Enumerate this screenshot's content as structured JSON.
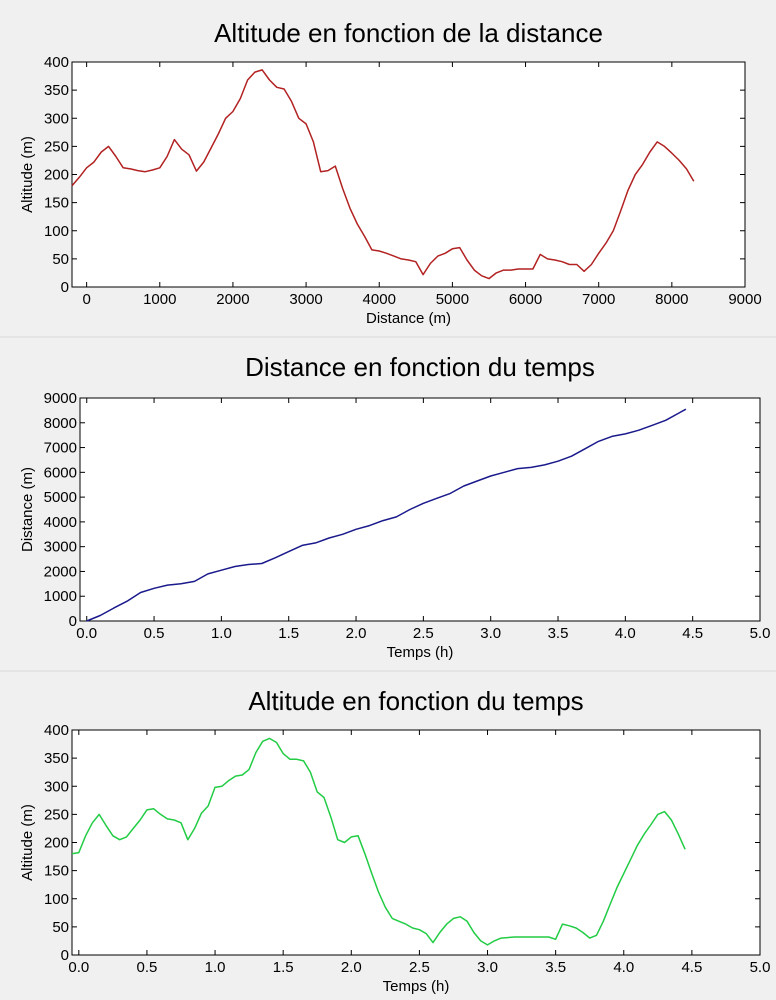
{
  "chart_data": [
    {
      "type": "line",
      "title": "Altitude en fonction de la distance",
      "xlabel": "Distance (m)",
      "ylabel": "Altitude (m)",
      "xlim": [
        -200,
        9000
      ],
      "ylim": [
        0,
        400
      ],
      "xticks": [
        0,
        1000,
        2000,
        3000,
        4000,
        5000,
        6000,
        7000,
        8000,
        9000
      ],
      "xtick_labels": [
        "0",
        "1000",
        "2000",
        "3000",
        "4000",
        "5000",
        "6000",
        "7000",
        "8000",
        "9000"
      ],
      "yticks": [
        0,
        50,
        100,
        150,
        200,
        250,
        300,
        350,
        400
      ],
      "ytick_labels": [
        "0",
        "50",
        "100",
        "150",
        "200",
        "250",
        "300",
        "350",
        "400"
      ],
      "grid": false,
      "color": "#b22222",
      "series": [
        {
          "x": [
            -200,
            -100,
            0,
            100,
            200,
            300,
            400,
            500,
            600,
            700,
            800,
            900,
            1000,
            1100,
            1200,
            1300,
            1400,
            1500,
            1600,
            1700,
            1800,
            1900,
            2000,
            2100,
            2200,
            2300,
            2400,
            2500,
            2600,
            2700,
            2800,
            2900,
            3000,
            3100,
            3200,
            3300,
            3400,
            3500,
            3600,
            3700,
            3800,
            3900,
            4000,
            4100,
            4200,
            4300,
            4400,
            4500,
            4600,
            4700,
            4800,
            4900,
            5000,
            5100,
            5200,
            5300,
            5400,
            5500,
            5600,
            5700,
            5800,
            5900,
            6000,
            6100,
            6200,
            6300,
            6400,
            6500,
            6600,
            6700,
            6800,
            6900,
            7000,
            7100,
            7200,
            7300,
            7400,
            7500,
            7600,
            7700,
            7800,
            7900,
            8000,
            8100,
            8200,
            8300
          ],
          "y": [
            180,
            195,
            212,
            222,
            240,
            250,
            232,
            212,
            210,
            207,
            205,
            208,
            212,
            232,
            262,
            245,
            235,
            206,
            222,
            247,
            272,
            300,
            312,
            335,
            368,
            382,
            386,
            368,
            355,
            352,
            330,
            300,
            290,
            258,
            205,
            207,
            215,
            175,
            140,
            112,
            90,
            66,
            64,
            60,
            55,
            50,
            48,
            45,
            22,
            42,
            55,
            60,
            68,
            70,
            48,
            30,
            20,
            15,
            25,
            30,
            30,
            32,
            32,
            32,
            58,
            50,
            48,
            45,
            40,
            40,
            28,
            40,
            60,
            78,
            100,
            135,
            172,
            200,
            218,
            240,
            258,
            250,
            238,
            225,
            210,
            188
          ]
        }
      ]
    },
    {
      "type": "line",
      "title": "Distance en fonction du temps",
      "xlabel": "Temps (h)",
      "ylabel": "Distance (m)",
      "xlim": [
        -0.05,
        5.0
      ],
      "ylim": [
        0,
        9000
      ],
      "xticks": [
        0.0,
        0.5,
        1.0,
        1.5,
        2.0,
        2.5,
        3.0,
        3.5,
        4.0,
        4.5,
        5.0
      ],
      "xtick_labels": [
        "0.0",
        "0.5",
        "1.0",
        "1.5",
        "2.0",
        "2.5",
        "3.0",
        "3.5",
        "4.0",
        "4.5",
        "5.0"
      ],
      "yticks": [
        0,
        1000,
        2000,
        3000,
        4000,
        5000,
        6000,
        7000,
        8000,
        9000
      ],
      "ytick_labels": [
        "0",
        "1000",
        "2000",
        "3000",
        "4000",
        "5000",
        "6000",
        "7000",
        "8000",
        "9000"
      ],
      "grid": false,
      "color": "#1a1a8c",
      "series": [
        {
          "x": [
            0.0,
            0.1,
            0.2,
            0.3,
            0.4,
            0.5,
            0.6,
            0.7,
            0.8,
            0.9,
            1.0,
            1.1,
            1.2,
            1.3,
            1.4,
            1.5,
            1.6,
            1.7,
            1.8,
            1.9,
            2.0,
            2.1,
            2.2,
            2.3,
            2.4,
            2.5,
            2.6,
            2.7,
            2.8,
            2.9,
            3.0,
            3.1,
            3.2,
            3.3,
            3.4,
            3.5,
            3.6,
            3.7,
            3.8,
            3.9,
            4.0,
            4.1,
            4.2,
            4.3,
            4.4,
            4.45
          ],
          "y": [
            0,
            220,
            520,
            800,
            1150,
            1320,
            1450,
            1500,
            1600,
            1900,
            2050,
            2200,
            2280,
            2320,
            2550,
            2800,
            3050,
            3150,
            3350,
            3500,
            3700,
            3850,
            4050,
            4200,
            4500,
            4750,
            4950,
            5150,
            5450,
            5650,
            5850,
            6000,
            6150,
            6200,
            6300,
            6450,
            6650,
            6950,
            7250,
            7450,
            7550,
            7700,
            7900,
            8100,
            8400,
            8550
          ]
        }
      ]
    },
    {
      "type": "line",
      "title": "Altitude en fonction du temps",
      "xlabel": "Temps (h)",
      "ylabel": "Altitude (m)",
      "xlim": [
        -0.05,
        5.0
      ],
      "ylim": [
        0,
        400
      ],
      "xticks": [
        0.0,
        0.5,
        1.0,
        1.5,
        2.0,
        2.5,
        3.0,
        3.5,
        4.0,
        4.5,
        5.0
      ],
      "xtick_labels": [
        "0.0",
        "0.5",
        "1.0",
        "1.5",
        "2.0",
        "2.5",
        "3.0",
        "3.5",
        "4.0",
        "4.5",
        "5.0"
      ],
      "yticks": [
        0,
        50,
        100,
        150,
        200,
        250,
        300,
        350,
        400
      ],
      "ytick_labels": [
        "0",
        "50",
        "100",
        "150",
        "200",
        "250",
        "300",
        "350",
        "400"
      ],
      "grid": false,
      "color": "#22cc44",
      "series": [
        {
          "x": [
            -0.05,
            0.0,
            0.05,
            0.1,
            0.15,
            0.2,
            0.25,
            0.3,
            0.35,
            0.4,
            0.45,
            0.5,
            0.55,
            0.6,
            0.65,
            0.7,
            0.75,
            0.8,
            0.85,
            0.9,
            0.95,
            1.0,
            1.05,
            1.1,
            1.15,
            1.2,
            1.25,
            1.3,
            1.35,
            1.4,
            1.45,
            1.5,
            1.55,
            1.6,
            1.65,
            1.7,
            1.75,
            1.8,
            1.85,
            1.9,
            1.95,
            2.0,
            2.05,
            2.1,
            2.15,
            2.2,
            2.25,
            2.3,
            2.35,
            2.4,
            2.45,
            2.5,
            2.55,
            2.6,
            2.65,
            2.7,
            2.75,
            2.8,
            2.85,
            2.9,
            2.95,
            3.0,
            3.05,
            3.1,
            3.2,
            3.3,
            3.4,
            3.45,
            3.5,
            3.55,
            3.6,
            3.65,
            3.7,
            3.75,
            3.8,
            3.85,
            3.9,
            3.95,
            4.0,
            4.05,
            4.1,
            4.15,
            4.2,
            4.25,
            4.3,
            4.35,
            4.4,
            4.45
          ],
          "y": [
            180,
            182,
            212,
            235,
            250,
            230,
            212,
            205,
            210,
            225,
            240,
            258,
            260,
            250,
            242,
            240,
            235,
            205,
            225,
            252,
            265,
            298,
            300,
            310,
            318,
            320,
            330,
            360,
            380,
            385,
            378,
            358,
            348,
            348,
            345,
            325,
            290,
            280,
            245,
            205,
            200,
            210,
            212,
            180,
            145,
            112,
            85,
            65,
            60,
            55,
            48,
            45,
            38,
            22,
            40,
            55,
            65,
            68,
            60,
            40,
            25,
            18,
            25,
            30,
            32,
            32,
            32,
            32,
            28,
            55,
            52,
            48,
            40,
            30,
            35,
            60,
            90,
            120,
            145,
            170,
            195,
            215,
            232,
            250,
            255,
            240,
            215,
            188
          ]
        }
      ]
    }
  ]
}
